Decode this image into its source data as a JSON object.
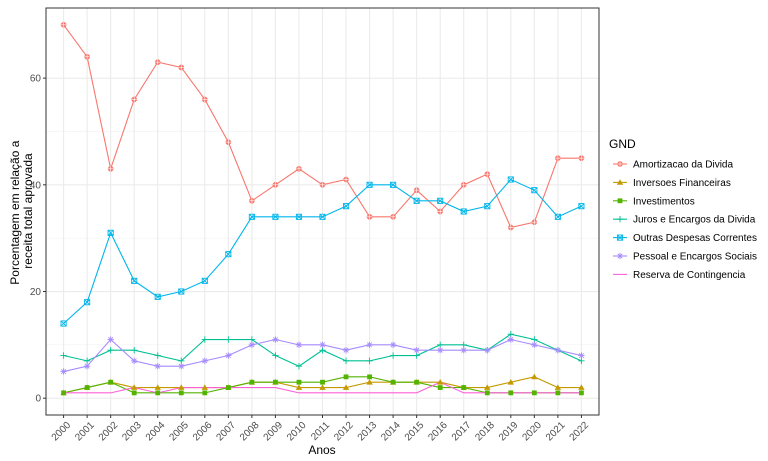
{
  "chart_data": {
    "type": "line",
    "xlabel": "Anos",
    "ylabel_lines": [
      "Porcentagem em relação a",
      "receita total aprovada"
    ],
    "ylim": [
      0,
      70
    ],
    "yticks": [
      0,
      20,
      40,
      60
    ],
    "grid": true,
    "legend_placement": "right",
    "legend_title": "GND",
    "categories": [
      "2000",
      "2001",
      "2002",
      "2003",
      "2004",
      "2005",
      "2006",
      "2007",
      "2008",
      "2009",
      "2010",
      "2011",
      "2012",
      "2013",
      "2014",
      "2015",
      "2016",
      "2017",
      "2018",
      "2019",
      "2020",
      "2021",
      "2022"
    ],
    "series": [
      {
        "name": "Amortizacao da Divida",
        "color": "#F8766D",
        "marker": "circle-plus",
        "values": [
          70,
          64,
          43,
          56,
          63,
          62,
          56,
          48,
          37,
          40,
          43,
          40,
          41,
          34,
          34,
          39,
          35,
          40,
          42,
          32,
          33,
          45,
          45
        ]
      },
      {
        "name": "Inversoes Financeiras",
        "color": "#C49A00",
        "marker": "triangle",
        "values": [
          1,
          2,
          3,
          2,
          2,
          2,
          2,
          2,
          3,
          3,
          2,
          2,
          2,
          3,
          3,
          3,
          3,
          2,
          2,
          3,
          4,
          2,
          2
        ]
      },
      {
        "name": "Investimentos",
        "color": "#53B400",
        "marker": "square",
        "values": [
          1,
          2,
          3,
          1,
          1,
          1,
          1,
          2,
          3,
          3,
          3,
          3,
          4,
          4,
          3,
          3,
          2,
          2,
          1,
          1,
          1,
          1,
          1
        ]
      },
      {
        "name": "Juros e Encargos da Divida",
        "color": "#00C094",
        "marker": "plus",
        "values": [
          8,
          7,
          9,
          9,
          8,
          7,
          11,
          11,
          11,
          8,
          6,
          9,
          7,
          7,
          8,
          8,
          10,
          10,
          9,
          12,
          11,
          9,
          7
        ]
      },
      {
        "name": "Outras Despesas Correntes",
        "color": "#00B6EB",
        "marker": "square-x",
        "values": [
          14,
          18,
          31,
          22,
          19,
          20,
          22,
          27,
          34,
          34,
          34,
          34,
          36,
          40,
          40,
          37,
          37,
          35,
          36,
          41,
          39,
          34,
          36
        ]
      },
      {
        "name": "Pessoal e Encargos Sociais",
        "color": "#A58AFF",
        "marker": "asterisk",
        "values": [
          5,
          6,
          11,
          7,
          6,
          6,
          7,
          8,
          10,
          11,
          10,
          10,
          9,
          10,
          10,
          9,
          9,
          9,
          9,
          11,
          10,
          9,
          8
        ]
      },
      {
        "name": "Reserva de Contingencia",
        "color": "#FB61D7",
        "marker": "none",
        "values": [
          1,
          1,
          1,
          2,
          1,
          2,
          2,
          2,
          2,
          2,
          1,
          1,
          1,
          1,
          1,
          1,
          3,
          1,
          1,
          1,
          1,
          1,
          1
        ]
      }
    ]
  }
}
